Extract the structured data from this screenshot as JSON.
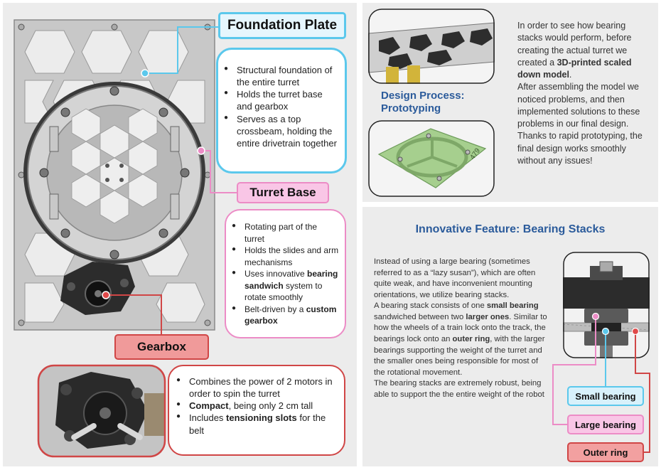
{
  "foundation": {
    "title": "Foundation Plate",
    "bullets": [
      "Structural foundation of the entire turret",
      "Holds the turret base and gearbox",
      "Serves as a top crossbeam, holding the entire drivetrain together"
    ]
  },
  "turret_base": {
    "title": "Turret Base",
    "b1": "Rotating part of the turret",
    "b2": "Holds the slides and arm mechanisms",
    "b3_pre": "Uses innovative ",
    "b3_bold": "bearing sandwich",
    "b3_post": " system to rotate smoothly",
    "b4_pre": "Belt-driven by a ",
    "b4_bold": "custom gearbox"
  },
  "gearbox": {
    "title": "Gearbox",
    "b1": "Combines the power of 2 motors in order to spin the turret",
    "b2_bold": "Compact",
    "b2_post": ", being only 2 cm tall",
    "b3_pre": "Includes ",
    "b3_bold": "tensioning slots",
    "b3_post": " for the belt"
  },
  "design_process": {
    "title": "Design Process: Prototyping",
    "t1": "In order to see how bearing stacks would perform, before creating the actual turret we created a ",
    "t1_bold": "3D-printed scaled down model",
    "t2": ".",
    "t3": "After assembling the model we noticed problems, and then implemented solutions to these problems in our final design.",
    "t4": "Thanks to rapid prototyping, the final design works smoothly without any issues!",
    "part_label": "479"
  },
  "bearing": {
    "title": "Innovative Feature: Bearing Stacks",
    "p1": "Instead of using a large bearing (sometimes referred to as a “lazy susan”), which are often quite weak, and have inconvenient mounting orientations, we utilize bearing stacks.",
    "p2_a": "A bearing stack consists of one ",
    "p2_b": "small bearing",
    "p2_c": " sandwiched between two ",
    "p2_d": "larger ones",
    "p2_e": ". Similar to how the wheels of a train lock onto the track, the bearings lock onto an ",
    "p2_f": "outer ring",
    "p2_g": ", with the larger bearings supporting the weight of the turret and the smaller ones being responsible for most of the rotational movement.",
    "p3": "The bearing stacks are extremely robust, being able to support the the entire weight of the robot",
    "labels": {
      "small": "Small bearing",
      "large": "Large bearing",
      "outer": "Outer ring"
    }
  },
  "colors": {
    "blue": "#5bc8ec",
    "pink": "#ec8cc6",
    "red": "#e04a4a",
    "panel": "#ececec",
    "heading_blue": "#2b5b9b"
  }
}
